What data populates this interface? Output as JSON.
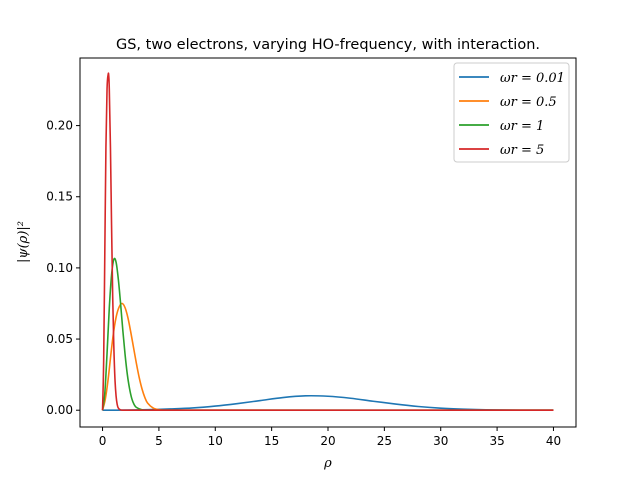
{
  "chart_data": {
    "type": "line",
    "title": "GS, two electrons, varying HO-frequency, with interaction.",
    "xlabel": "ρ",
    "ylabel": "|ψ(ρ)|²",
    "xlim": [
      -2,
      42
    ],
    "ylim": [
      -0.0118,
      0.2475
    ],
    "xticks": [
      0,
      5,
      10,
      15,
      20,
      25,
      30,
      35,
      40
    ],
    "yticks": [
      0.0,
      0.05,
      0.1,
      0.15,
      0.2
    ],
    "ytick_labels": [
      "0.00",
      "0.05",
      "0.10",
      "0.15",
      "0.20"
    ],
    "grid": false,
    "legend_position": "top-right",
    "series": [
      {
        "name": "ω_r = 0.01",
        "legend_label": "ωr = 0.01",
        "color": "#1f77b4",
        "x": [
          0,
          2,
          4,
          6,
          8,
          10,
          12,
          14,
          16,
          18,
          20,
          22,
          24,
          26,
          28,
          30,
          32,
          34,
          36,
          38,
          40
        ],
        "y": [
          0.0,
          0.0001,
          0.0004,
          0.0009,
          0.0016,
          0.0029,
          0.0047,
          0.0068,
          0.0089,
          0.0101,
          0.0098,
          0.0084,
          0.0063,
          0.0043,
          0.0026,
          0.0014,
          0.0007,
          0.0003,
          0.0001,
          0.0,
          0.0
        ]
      },
      {
        "name": "ω_r = 0.5",
        "legend_label": "ωr = 0.5",
        "color": "#ff7f0e",
        "x": [
          0,
          0.25,
          0.5,
          0.75,
          1.0,
          1.25,
          1.5,
          1.75,
          2.0,
          2.25,
          2.5,
          2.75,
          3.0,
          3.25,
          3.5,
          3.75,
          4.0,
          4.5,
          5.0,
          6.0,
          40
        ],
        "y": [
          0.0,
          0.008,
          0.022,
          0.04,
          0.056,
          0.067,
          0.073,
          0.075,
          0.072,
          0.065,
          0.055,
          0.044,
          0.033,
          0.023,
          0.015,
          0.009,
          0.005,
          0.0015,
          0.0004,
          0.0,
          0.0
        ]
      },
      {
        "name": "ω_r = 1",
        "legend_label": "ωr = 1",
        "color": "#2ca02c",
        "x": [
          0,
          0.2,
          0.4,
          0.6,
          0.8,
          1.0,
          1.2,
          1.4,
          1.6,
          1.8,
          2.0,
          2.2,
          2.4,
          2.6,
          2.8,
          3.0,
          3.5,
          4.0,
          40
        ],
        "y": [
          0.0,
          0.012,
          0.04,
          0.072,
          0.095,
          0.106,
          0.104,
          0.092,
          0.075,
          0.056,
          0.039,
          0.025,
          0.015,
          0.008,
          0.004,
          0.002,
          0.0003,
          0.0,
          0.0
        ]
      },
      {
        "name": "ω_r = 5",
        "legend_label": "ωr = 5",
        "color": "#d62728",
        "x": [
          0,
          0.1,
          0.2,
          0.3,
          0.4,
          0.5,
          0.55,
          0.6,
          0.7,
          0.8,
          0.9,
          1.0,
          1.1,
          1.2,
          1.3,
          1.4,
          1.6,
          2.0,
          40
        ],
        "y": [
          0.0,
          0.035,
          0.11,
          0.185,
          0.226,
          0.236,
          0.235,
          0.225,
          0.185,
          0.13,
          0.08,
          0.045,
          0.022,
          0.01,
          0.004,
          0.0015,
          0.0002,
          0.0,
          0.0
        ]
      }
    ]
  }
}
